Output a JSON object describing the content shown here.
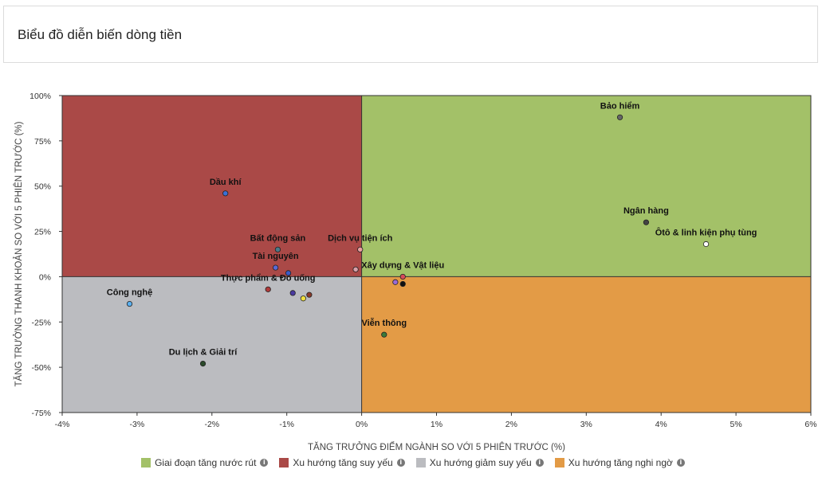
{
  "header": {
    "title": "Biểu đồ diễn biến dòng tiền"
  },
  "colors": {
    "q1": "#a3c168",
    "q2": "#aa4947",
    "q3": "#bbbcc0",
    "q4": "#e39b46"
  },
  "legend": [
    {
      "label": "Giai đoạn tăng nước rút",
      "color": "#a3c168",
      "icon": "info-icon"
    },
    {
      "label": "Xu hướng tăng suy yếu",
      "color": "#aa4947",
      "icon": "info-icon"
    },
    {
      "label": "Xu hướng giảm suy yếu",
      "color": "#bbbcc0",
      "icon": "info-icon"
    },
    {
      "label": "Xu hướng tăng nghi ngờ",
      "color": "#e39b46",
      "icon": "info-icon"
    }
  ],
  "chart_data": {
    "type": "scatter",
    "xlabel": "TĂNG TRƯỞNG ĐIỂM NGÀNH SO VỚI 5 PHIÊN TRƯỚC (%)",
    "ylabel": "TĂNG TRƯỞNG THANH KHOẢN SO VỚI 5 PHIÊN TRƯỚC (%)",
    "xlim": [
      -4,
      6
    ],
    "ylim": [
      -75,
      100
    ],
    "xticks": [
      -4,
      -3,
      -2,
      -1,
      0,
      1,
      2,
      3,
      4,
      5,
      6
    ],
    "xtick_labels": [
      "-4%",
      "-3%",
      "-2%",
      "-1%",
      "0%",
      "1%",
      "2%",
      "3%",
      "4%",
      "5%",
      "6%"
    ],
    "yticks": [
      -75,
      -50,
      -25,
      0,
      25,
      50,
      75,
      100
    ],
    "ytick_labels": [
      "-75%",
      "-50%",
      "-25%",
      "0%",
      "25%",
      "50%",
      "75%",
      "100%"
    ],
    "points": [
      {
        "label": "Bảo hiểm",
        "x": 3.45,
        "y": 88,
        "color": "#666666"
      },
      {
        "label": "Ngân hàng",
        "x": 3.8,
        "y": 30,
        "color": "#444444"
      },
      {
        "label": "Ôtô & linh kiện phụ tùng",
        "x": 4.6,
        "y": 18,
        "color": "#ffffff"
      },
      {
        "label": "Dầu khí",
        "x": -1.82,
        "y": 46,
        "color": "#3a6fd6"
      },
      {
        "label": "Bất động sản",
        "x": -1.12,
        "y": 15,
        "color": "#4a7a8a"
      },
      {
        "label": "Dịch vụ tiện ích",
        "x": -0.02,
        "y": 15,
        "color": "#e8a0a0"
      },
      {
        "label": "Tài nguyên",
        "x": -1.15,
        "y": 5,
        "color": "#5a6ad6"
      },
      {
        "label": "Xây dựng & Vật liệu",
        "x": 0.55,
        "y": 0,
        "color": "#d84a5a"
      },
      {
        "label": "Thực phẩm & Đồ uống",
        "x": -1.25,
        "y": -7,
        "color": "#b03a3a"
      },
      {
        "label": "",
        "x": -0.92,
        "y": -9,
        "color": "#4a3aa0"
      },
      {
        "label": "",
        "x": -0.78,
        "y": -12,
        "color": "#f0e040"
      },
      {
        "label": "",
        "x": -0.7,
        "y": -10,
        "color": "#8a3a2a"
      },
      {
        "label": "",
        "x": 0.45,
        "y": -3,
        "color": "#9a6ad6"
      },
      {
        "label": "",
        "x": 0.55,
        "y": -4,
        "color": "#111111"
      },
      {
        "label": "",
        "x": -0.08,
        "y": 4,
        "color": "#d8a0a8"
      },
      {
        "label": "",
        "x": -0.98,
        "y": 2,
        "color": "#3a5ac6"
      },
      {
        "label": "Công nghệ",
        "x": -3.1,
        "y": -15,
        "color": "#5ab0f0"
      },
      {
        "label": "Viễn thông",
        "x": 0.3,
        "y": -32,
        "color": "#3a7a3a"
      },
      {
        "label": "Du lịch & Giải trí",
        "x": -2.12,
        "y": -48,
        "color": "#2a4a2a"
      }
    ]
  }
}
